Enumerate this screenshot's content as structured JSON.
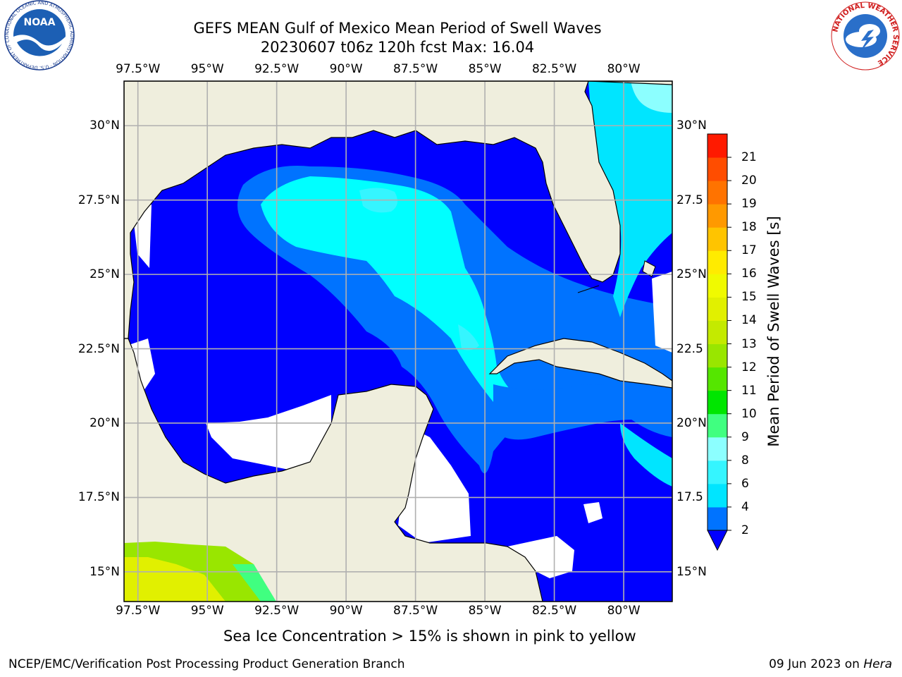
{
  "title_line1": "GEFS MEAN Gulf of Mexico Mean Period of Swell Waves",
  "title_line2": "20230607 t06z 120h fcst   Max: 16.04",
  "lon_labels": [
    "97.5°W",
    "95°W",
    "92.5°W",
    "90°W",
    "87.5°W",
    "85°W",
    "82.5°W",
    "80°W"
  ],
  "lat_labels_left": [
    "30°N",
    "27.5°N",
    "25°N",
    "22.5°N",
    "20°N",
    "17.5°N",
    "15°N"
  ],
  "lat_labels_right": [
    "30°N",
    "27.5",
    "25°N",
    "22.5",
    "20°N",
    "17.5",
    "15°N"
  ],
  "colorbar": {
    "label": "Mean Period of Swell Waves [s]",
    "ticks": [
      "2",
      "4",
      "6",
      "8",
      "9",
      "10",
      "11",
      "12",
      "13",
      "14",
      "15",
      "16",
      "17",
      "18",
      "19",
      "20",
      "21"
    ],
    "colors": [
      "#0073ff",
      "#00e5ff",
      "#35f5ff",
      "#8cffff",
      "#40ff80",
      "#00e600",
      "#55e600",
      "#99e600",
      "#c4ea00",
      "#e1f000",
      "#f0fa00",
      "#ffeb00",
      "#ffc400",
      "#ff9900",
      "#ff7300",
      "#ff4d00",
      "#ff1a00"
    ],
    "under_color": "#0000ff"
  },
  "map": {
    "lon_range": [
      -98.0,
      -78.25
    ],
    "lat_range": [
      14.0,
      31.5
    ],
    "land_color": "#efeedd",
    "grid_color": "#b0b0b0"
  },
  "note": "Sea Ice Concentration > 15% is shown in pink to yellow",
  "credit": "NCEP/EMC/Verification Post Processing Product Generation Branch",
  "date_text": "09 Jun 2023 on ",
  "host": "Hera",
  "logos": {
    "noaa_text": "NOAA",
    "noaa_ring": "NATIONAL OCEANIC AND ATMOSPHERIC ADMINISTRATION · U.S. DEPARTMENT OF COMMERCE",
    "nws_ring": "NATIONAL WEATHER SERVICE"
  }
}
